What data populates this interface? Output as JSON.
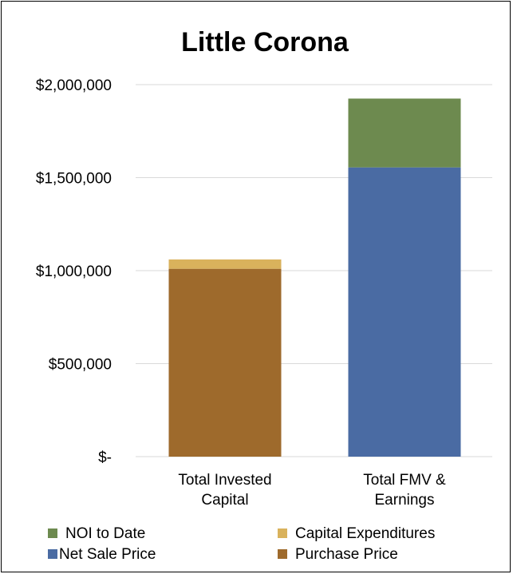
{
  "chart_data": {
    "type": "bar",
    "stacked": true,
    "title": "Little Corona",
    "xlabel": "",
    "ylabel": "",
    "ylim": [
      0,
      2000000
    ],
    "yticks": [
      0,
      500000,
      1000000,
      1500000,
      2000000
    ],
    "ytick_labels": [
      "$-",
      "$500,000",
      "$1,000,000",
      "$1,500,000",
      "$2,000,000"
    ],
    "grid": true,
    "legend_position": "bottom",
    "categories": [
      [
        "Total Invested",
        "Capital"
      ],
      [
        "Total FMV &",
        "Earnings"
      ]
    ],
    "series": [
      {
        "name": "Purchase Price",
        "color": "#9e6a2c",
        "values": [
          1010000,
          0
        ]
      },
      {
        "name": "Capital Expenditures",
        "color": "#d9b25c",
        "values": [
          50000,
          0
        ]
      },
      {
        "name": "Net Sale Price",
        "color": "#4a6ba3",
        "values": [
          0,
          1555000
        ]
      },
      {
        "name": "NOI to Date",
        "color": "#6d8a4f",
        "values": [
          0,
          370000
        ]
      }
    ],
    "legend_order": [
      "NOI to Date",
      "Capital Expenditures",
      "Net Sale Price",
      "Purchase Price"
    ]
  }
}
